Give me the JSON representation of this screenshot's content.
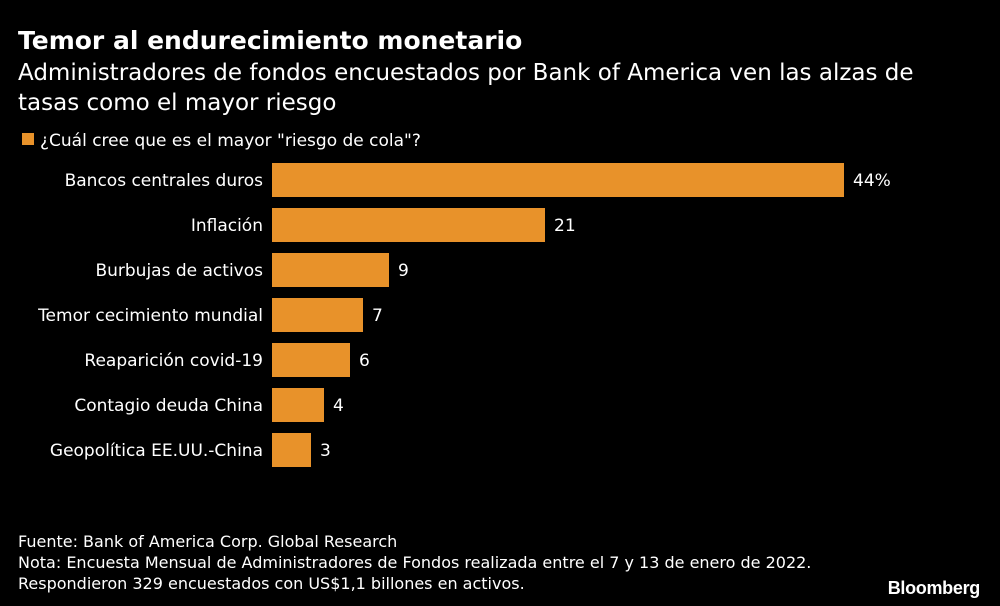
{
  "chart_data": {
    "type": "bar",
    "orientation": "horizontal",
    "title": "Temor al endurecimiento monetario",
    "subtitle": "Administradores de fondos encuestados por Bank of America ven las alzas de tasas como el mayor riesgo",
    "legend": "¿Cuál cree que es el mayor \"riesgo de cola\"?",
    "categories": [
      "Bancos centrales duros",
      "Inflación",
      "Burbujas de activos",
      "Temor cecimiento mundial",
      "Reaparición covid-19",
      "Contagio deuda China",
      "Geopolítica EE.UU.-China"
    ],
    "values": [
      44,
      21,
      9,
      7,
      6,
      4,
      3
    ],
    "value_labels": [
      "44%",
      "21",
      "9",
      "7",
      "6",
      "4",
      "3"
    ],
    "xlim": [
      0,
      44
    ],
    "bar_color": "#e8922a",
    "grid": false,
    "legend_position": "top-left"
  },
  "footer": {
    "source": "Fuente: Bank of America Corp. Global Research",
    "note": "Nota: Encuesta Mensual de Administradores de Fondos realizada entre el 7 y 13 de enero de 2022. Respondieron 329 encuestados con US$1,1 billones en activos."
  },
  "brand": "Bloomberg",
  "colors": {
    "background": "#000000",
    "text": "#ffffff",
    "accent": "#e8922a"
  }
}
